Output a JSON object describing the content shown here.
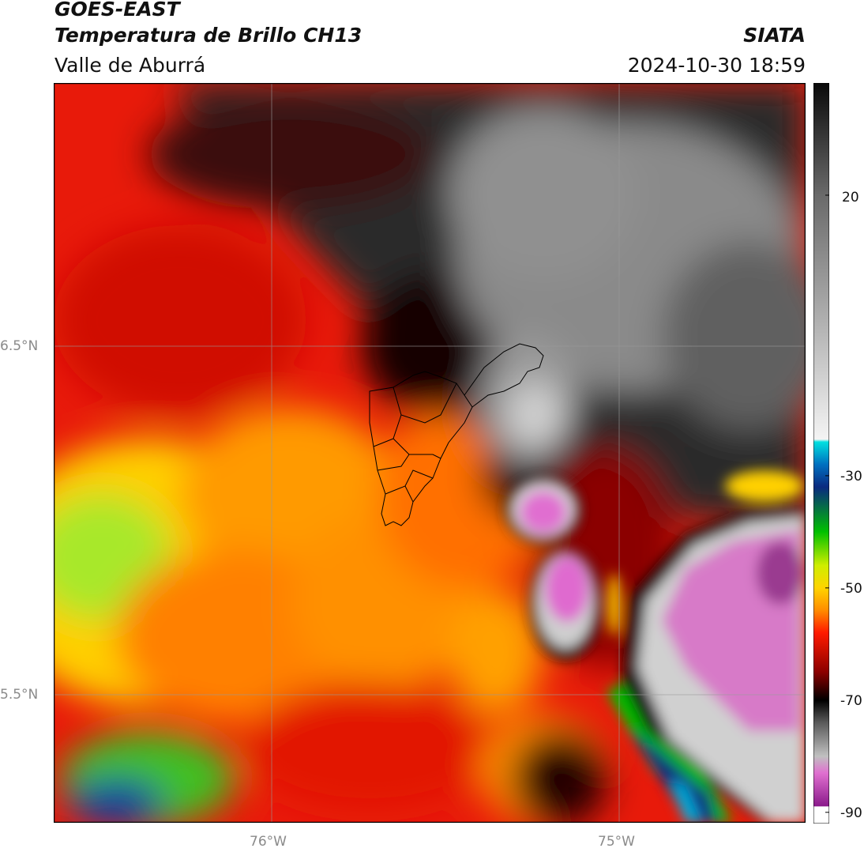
{
  "header": {
    "satellite": "GOES-EAST",
    "product": "Temperatura de Brillo CH13",
    "region": "Valle de Aburrá",
    "agency": "SIATA",
    "datetime": "2024-10-30 18:59"
  },
  "map": {
    "lat_labels": [
      "6.5°N",
      "5.5°N"
    ],
    "lon_labels": [
      "76°W",
      "75°W"
    ],
    "gridlines": true,
    "field": "brightness temperature (°C)"
  },
  "colorbar": {
    "tick_labels": [
      "20",
      "-30",
      "-50",
      "-70",
      "-90"
    ],
    "range": [
      -92,
      40
    ],
    "stops": [
      {
        "v": -92,
        "c": "#ffffff"
      },
      {
        "v": -89,
        "c": "#ffffff"
      },
      {
        "v": -88.9,
        "c": "#8b1a8b"
      },
      {
        "v": -83,
        "c": "#e070d0"
      },
      {
        "v": -80,
        "c": "#c0c0c0"
      },
      {
        "v": -74,
        "c": "#5a5a5a"
      },
      {
        "v": -70,
        "c": "#000000"
      },
      {
        "v": -65,
        "c": "#8b0000"
      },
      {
        "v": -58,
        "c": "#ff1a00"
      },
      {
        "v": -54,
        "c": "#ff8c00"
      },
      {
        "v": -50,
        "c": "#ffd400"
      },
      {
        "v": -46,
        "c": "#cfee00"
      },
      {
        "v": -40,
        "c": "#00c000"
      },
      {
        "v": -32,
        "c": "#0a2a80"
      },
      {
        "v": -28,
        "c": "#0070c0"
      },
      {
        "v": -24,
        "c": "#00e0e0"
      },
      {
        "v": -23.5,
        "c": "#f4f4f4"
      },
      {
        "v": 0,
        "c": "#a8a8a8"
      },
      {
        "v": 20,
        "c": "#6a6a6a"
      },
      {
        "v": 40,
        "c": "#0a0a0a"
      }
    ]
  }
}
